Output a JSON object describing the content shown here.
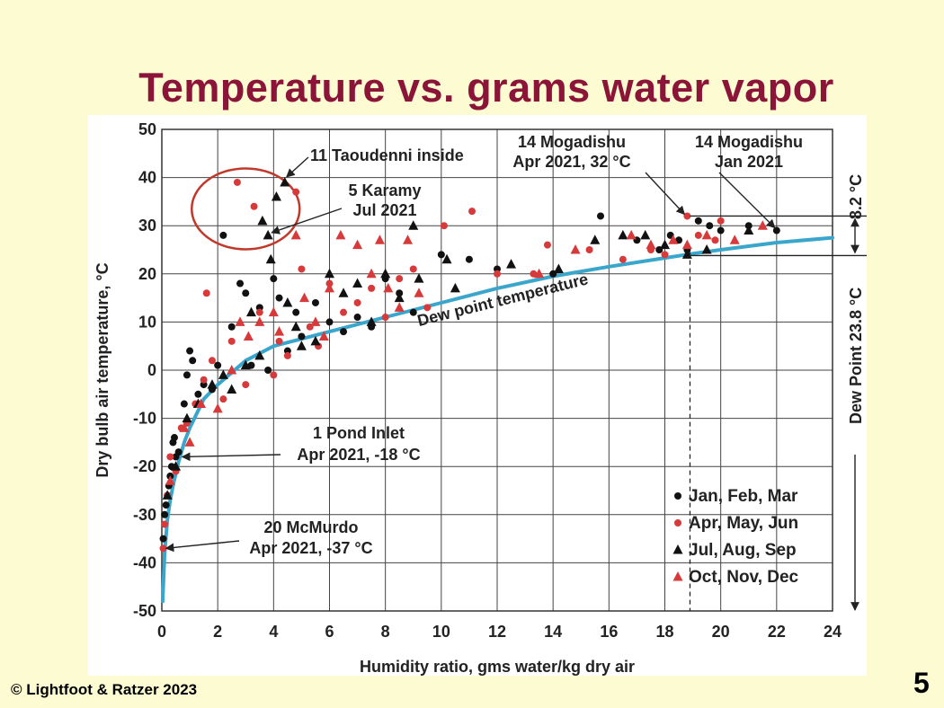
{
  "slide": {
    "title": "Temperature vs. grams water vapor",
    "copyright": "© Lightfoot & Ratzer 2023",
    "page_number": "5"
  },
  "colors": {
    "background": "#fdfbd2",
    "title": "#8b1538",
    "dew_curve": "#3aa6cc",
    "series_black": "#111111",
    "series_red": "#d63a3a",
    "circle_highlight": "#c0392b"
  },
  "chart_data": {
    "type": "scatter",
    "xlabel": "Humidity ratio, gms water/kg dry air",
    "ylabel": "Dry bulb air temperature, °C",
    "xlim": [
      0,
      24
    ],
    "ylim": [
      -50,
      50
    ],
    "x_ticks": [
      0,
      2,
      4,
      6,
      8,
      10,
      12,
      14,
      16,
      18,
      20,
      22,
      24
    ],
    "y_ticks": [
      50,
      40,
      30,
      20,
      10,
      0,
      -10,
      -20,
      -30,
      -40,
      -50
    ],
    "grid": true,
    "legend_position": "bottom-right",
    "curve": {
      "name": "Dew point temperature",
      "x": [
        0.03,
        0.1,
        0.2,
        0.3,
        0.4,
        0.6,
        0.8,
        1.0,
        1.5,
        2.0,
        3.0,
        4.0,
        5.0,
        6.0,
        7.0,
        8.0,
        10.0,
        12.0,
        14.0,
        16.0,
        18.0,
        19.0,
        20.0,
        22.0,
        24.0
      ],
      "y": [
        -48,
        -38,
        -31,
        -27,
        -24,
        -19,
        -15,
        -12,
        -6,
        -3,
        2,
        5,
        6.5,
        8,
        9.5,
        11,
        14,
        17,
        19.5,
        21.5,
        23.3,
        24.2,
        25,
        26.5,
        27.5
      ]
    },
    "series": [
      {
        "name": "Jan, Feb, Mar",
        "marker": "circle",
        "color": "#111111",
        "points": [
          [
            0.05,
            -35
          ],
          [
            0.1,
            -30
          ],
          [
            0.15,
            -28
          ],
          [
            0.2,
            -26
          ],
          [
            0.25,
            -24
          ],
          [
            0.3,
            -22
          ],
          [
            0.35,
            -20
          ],
          [
            0.4,
            -15
          ],
          [
            0.45,
            -14
          ],
          [
            0.5,
            -18
          ],
          [
            0.6,
            -17
          ],
          [
            0.8,
            -7
          ],
          [
            0.9,
            -1
          ],
          [
            1.0,
            4
          ],
          [
            1.1,
            2
          ],
          [
            1.3,
            -5
          ],
          [
            1.5,
            -3
          ],
          [
            1.8,
            -4
          ],
          [
            2.0,
            1
          ],
          [
            2.2,
            28
          ],
          [
            2.5,
            9
          ],
          [
            2.8,
            18
          ],
          [
            3.0,
            16
          ],
          [
            3.2,
            1
          ],
          [
            3.5,
            13
          ],
          [
            3.8,
            0
          ],
          [
            4.0,
            19
          ],
          [
            4.2,
            15
          ],
          [
            4.5,
            4
          ],
          [
            4.8,
            12
          ],
          [
            5.0,
            7
          ],
          [
            5.5,
            14
          ],
          [
            6.0,
            10
          ],
          [
            6.5,
            8
          ],
          [
            7.0,
            11
          ],
          [
            7.5,
            9
          ],
          [
            8.0,
            19
          ],
          [
            8.5,
            16
          ],
          [
            9.0,
            12
          ],
          [
            10.0,
            24
          ],
          [
            11.0,
            23
          ],
          [
            12.0,
            21
          ],
          [
            14.0,
            20
          ],
          [
            15.7,
            32
          ],
          [
            17.0,
            27
          ],
          [
            17.8,
            25
          ],
          [
            18.2,
            28
          ],
          [
            18.5,
            27
          ],
          [
            18.8,
            25
          ],
          [
            19.2,
            31
          ],
          [
            19.6,
            30
          ],
          [
            20.0,
            29
          ],
          [
            21.0,
            30
          ],
          [
            22.0,
            29
          ]
        ]
      },
      {
        "name": "Apr, May, Jun",
        "marker": "circle",
        "color": "#d63a3a",
        "points": [
          [
            0.05,
            -37
          ],
          [
            0.1,
            -32
          ],
          [
            0.2,
            -26
          ],
          [
            0.3,
            -18
          ],
          [
            0.5,
            -21
          ],
          [
            0.7,
            -12
          ],
          [
            0.9,
            -11
          ],
          [
            1.2,
            -7
          ],
          [
            1.5,
            -2
          ],
          [
            1.6,
            16
          ],
          [
            1.8,
            2
          ],
          [
            2.2,
            -6
          ],
          [
            2.5,
            6
          ],
          [
            2.7,
            39
          ],
          [
            3.0,
            -3
          ],
          [
            3.3,
            34
          ],
          [
            3.5,
            12
          ],
          [
            4.0,
            -1
          ],
          [
            4.2,
            6
          ],
          [
            4.5,
            3
          ],
          [
            4.8,
            37
          ],
          [
            5.0,
            21
          ],
          [
            5.3,
            9
          ],
          [
            5.6,
            5
          ],
          [
            6.0,
            18
          ],
          [
            6.5,
            12
          ],
          [
            7.0,
            14
          ],
          [
            7.5,
            17
          ],
          [
            8.0,
            11
          ],
          [
            8.5,
            19
          ],
          [
            9.0,
            21
          ],
          [
            9.5,
            13
          ],
          [
            10.1,
            30
          ],
          [
            11.1,
            33
          ],
          [
            12.0,
            20
          ],
          [
            13.3,
            20
          ],
          [
            13.8,
            26
          ],
          [
            15.3,
            25
          ],
          [
            16.5,
            23
          ],
          [
            17.5,
            25
          ],
          [
            18.0,
            24
          ],
          [
            18.8,
            32
          ],
          [
            19.2,
            28
          ],
          [
            19.8,
            27
          ],
          [
            20.0,
            31
          ]
        ]
      },
      {
        "name": "Jul, Aug, Sep",
        "marker": "triangle",
        "color": "#111111",
        "points": [
          [
            0.2,
            -26
          ],
          [
            0.5,
            -20
          ],
          [
            0.9,
            -10
          ],
          [
            1.3,
            -7
          ],
          [
            1.8,
            -3
          ],
          [
            2.2,
            -1
          ],
          [
            2.5,
            -4
          ],
          [
            3.0,
            1
          ],
          [
            3.2,
            12
          ],
          [
            3.5,
            3
          ],
          [
            3.6,
            31
          ],
          [
            3.8,
            28
          ],
          [
            3.9,
            23
          ],
          [
            4.1,
            36
          ],
          [
            4.4,
            39
          ],
          [
            4.5,
            14
          ],
          [
            4.8,
            9
          ],
          [
            5.0,
            5
          ],
          [
            5.5,
            6
          ],
          [
            6.0,
            20
          ],
          [
            6.5,
            16
          ],
          [
            7.0,
            18
          ],
          [
            7.5,
            10
          ],
          [
            8.0,
            20
          ],
          [
            8.5,
            15
          ],
          [
            9.0,
            30
          ],
          [
            9.2,
            19
          ],
          [
            10.2,
            23
          ],
          [
            10.5,
            17
          ],
          [
            12.5,
            22
          ],
          [
            14.2,
            21
          ],
          [
            15.5,
            27
          ],
          [
            16.5,
            28
          ],
          [
            17.3,
            28
          ],
          [
            18.0,
            26
          ],
          [
            18.8,
            24
          ],
          [
            19.5,
            25
          ],
          [
            21.0,
            29
          ]
        ]
      },
      {
        "name": "Oct, Nov, Dec",
        "marker": "triangle",
        "color": "#d63a3a",
        "points": [
          [
            0.3,
            -23
          ],
          [
            0.8,
            -12
          ],
          [
            1.0,
            -15
          ],
          [
            1.4,
            -7
          ],
          [
            2.0,
            -8
          ],
          [
            2.5,
            0
          ],
          [
            2.8,
            10
          ],
          [
            3.1,
            7
          ],
          [
            3.5,
            10
          ],
          [
            4.0,
            12
          ],
          [
            4.2,
            8
          ],
          [
            4.8,
            28
          ],
          [
            5.1,
            15
          ],
          [
            5.5,
            10
          ],
          [
            5.8,
            7
          ],
          [
            6.0,
            17
          ],
          [
            6.4,
            28
          ],
          [
            7.0,
            26
          ],
          [
            7.5,
            20
          ],
          [
            7.8,
            27
          ],
          [
            8.1,
            17
          ],
          [
            8.5,
            13
          ],
          [
            8.8,
            27
          ],
          [
            9.2,
            16
          ],
          [
            13.5,
            20
          ],
          [
            14.8,
            25
          ],
          [
            16.8,
            28
          ],
          [
            17.5,
            26
          ],
          [
            18.3,
            27
          ],
          [
            18.8,
            26
          ],
          [
            19.5,
            28
          ],
          [
            20.5,
            27
          ],
          [
            21.5,
            30
          ]
        ]
      }
    ],
    "annotations": [
      {
        "lines": [
          "11 Taoudenni inside"
        ]
      },
      {
        "lines": [
          "5 Karamy",
          "Jul 2021"
        ]
      },
      {
        "lines": [
          "14 Mogadishu",
          "Apr 2021, 32 °C"
        ]
      },
      {
        "lines": [
          "14 Mogadishu",
          "Jan 2021"
        ]
      },
      {
        "lines": [
          "1 Pond Inlet",
          "Apr 2021, -18 °C"
        ]
      },
      {
        "lines": [
          "20 McMurdo",
          "Apr 2021, -37 °C"
        ]
      },
      {
        "lines": [
          "8.2 °C"
        ]
      },
      {
        "lines": [
          "Dew Point 23.8 °C"
        ]
      }
    ],
    "highlight_circle": {
      "cx": 3.0,
      "cy": 33.5
    }
  }
}
